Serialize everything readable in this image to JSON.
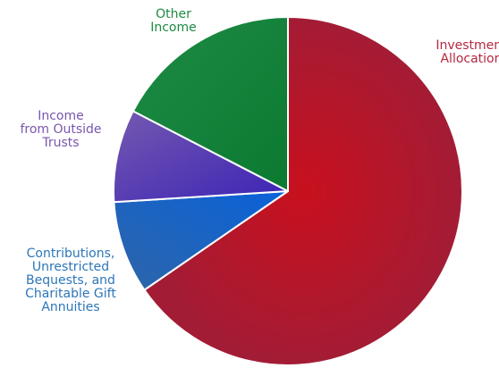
{
  "chart_data": {
    "type": "pie",
    "title": "",
    "slices": [
      {
        "name": "Investment Allocation",
        "label_lines": [
          "Investment",
          "Allocation"
        ],
        "value": 65.4,
        "color": "#A31C35",
        "label_color": "#B5283F"
      },
      {
        "name": "Contributions, Unrestricted Bequests, and Charitable Gift Annuities",
        "label_lines": [
          "Contributions,",
          "Unrestricted",
          "Bequests, and",
          "Charitable Gift",
          "Annuities"
        ],
        "value": 8.6,
        "color": "#1F67B5",
        "label_color": "#2C76B8"
      },
      {
        "name": "Income from Outside Trusts",
        "label_lines": [
          "Income",
          "from Outside",
          "Trusts"
        ],
        "value": 8.6,
        "color": "#5B38A8",
        "label_color": "#7A56AE"
      },
      {
        "name": "Other Income",
        "label_lines": [
          "Other",
          "Income"
        ],
        "value": 17.4,
        "color": "#13813B",
        "label_color": "#1E8A44"
      }
    ],
    "legend": "none"
  }
}
